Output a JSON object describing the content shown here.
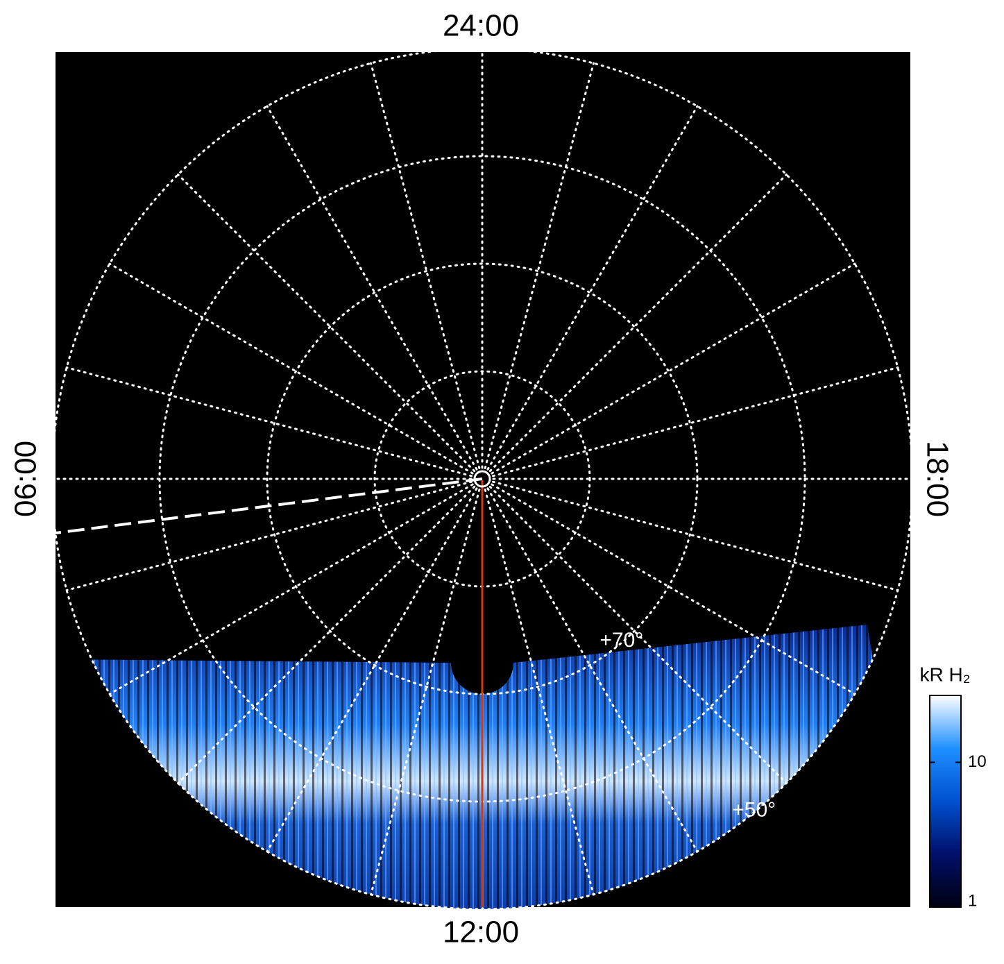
{
  "chart_data": {
    "type": "polar",
    "time_labels": [
      "24:00",
      "06:00",
      "12:00",
      "18:00"
    ],
    "rlim": [
      90,
      50
    ],
    "rticks": [
      80,
      70,
      60,
      50
    ],
    "annotations": [
      {
        "text": "+70°",
        "value": 70
      },
      {
        "text": "+50°",
        "value": 50
      }
    ],
    "colorbar": {
      "label": "kR H₂",
      "lim": [
        1,
        29
      ],
      "log": true,
      "ticks": [
        1,
        10
      ],
      "colors": [
        "#000010",
        "#00106a",
        "#0050d0",
        "#1e90ff",
        "#ffffff"
      ]
    }
  }
}
